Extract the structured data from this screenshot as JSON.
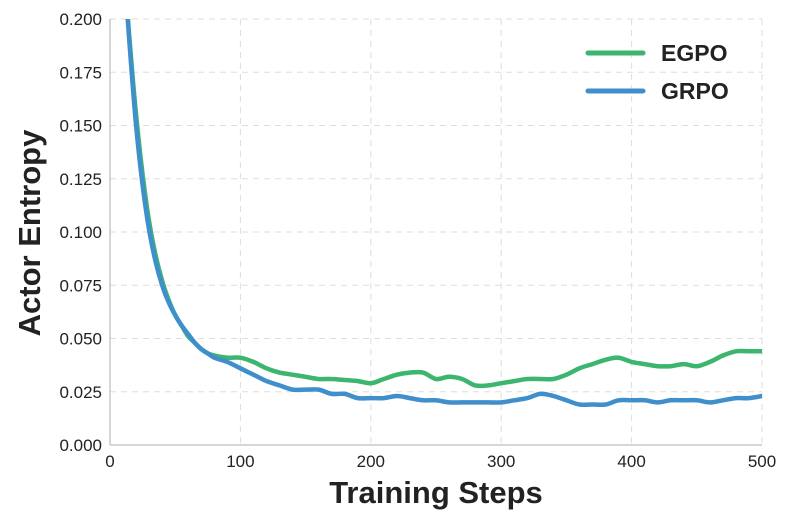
{
  "chart_data": {
    "type": "line",
    "title": "",
    "xlabel": "Training Steps",
    "ylabel": "Actor Entropy",
    "xlim": [
      0,
      500
    ],
    "ylim": [
      0,
      0.2
    ],
    "x_ticks": [
      0,
      100,
      200,
      300,
      400,
      500
    ],
    "x_tick_labels": [
      "0",
      "100",
      "200",
      "300",
      "400",
      "500"
    ],
    "y_ticks": [
      0,
      0.025,
      0.05,
      0.075,
      0.1,
      0.125,
      0.15,
      0.175,
      0.2
    ],
    "y_tick_labels": [
      "0.000",
      "0.025",
      "0.050",
      "0.075",
      "0.100",
      "0.125",
      "0.150",
      "0.175",
      "0.200"
    ],
    "grid": true,
    "legend_position": "top-right",
    "series": [
      {
        "name": "EGPO",
        "color": "#3cb56e",
        "x": [
          12,
          15,
          20,
          25,
          30,
          35,
          40,
          45,
          50,
          55,
          60,
          65,
          70,
          75,
          80,
          90,
          100,
          110,
          120,
          130,
          140,
          150,
          160,
          170,
          180,
          190,
          200,
          210,
          220,
          230,
          240,
          250,
          260,
          270,
          280,
          290,
          300,
          310,
          320,
          330,
          340,
          350,
          360,
          370,
          380,
          390,
          400,
          410,
          420,
          430,
          440,
          450,
          460,
          470,
          480,
          490,
          500
        ],
        "y": [
          0.215,
          0.19,
          0.155,
          0.127,
          0.105,
          0.089,
          0.077,
          0.068,
          0.061,
          0.056,
          0.051,
          0.048,
          0.045,
          0.043,
          0.042,
          0.041,
          0.041,
          0.039,
          0.036,
          0.034,
          0.033,
          0.032,
          0.031,
          0.031,
          0.0305,
          0.03,
          0.029,
          0.031,
          0.033,
          0.034,
          0.034,
          0.031,
          0.032,
          0.031,
          0.028,
          0.028,
          0.029,
          0.03,
          0.031,
          0.031,
          0.031,
          0.033,
          0.036,
          0.038,
          0.04,
          0.041,
          0.039,
          0.038,
          0.037,
          0.037,
          0.038,
          0.037,
          0.039,
          0.042,
          0.044,
          0.044,
          0.044
        ]
      },
      {
        "name": "GRPO",
        "color": "#3f8fcc",
        "x": [
          12,
          15,
          20,
          25,
          30,
          35,
          40,
          45,
          50,
          55,
          60,
          65,
          70,
          75,
          80,
          90,
          100,
          110,
          120,
          130,
          140,
          150,
          160,
          170,
          180,
          190,
          200,
          210,
          220,
          230,
          240,
          250,
          260,
          270,
          280,
          290,
          300,
          310,
          320,
          330,
          340,
          350,
          360,
          370,
          380,
          390,
          400,
          410,
          420,
          430,
          440,
          450,
          460,
          470,
          480,
          490,
          500
        ],
        "y": [
          0.215,
          0.188,
          0.15,
          0.122,
          0.101,
          0.086,
          0.075,
          0.067,
          0.061,
          0.056,
          0.052,
          0.048,
          0.045,
          0.043,
          0.041,
          0.039,
          0.036,
          0.033,
          0.03,
          0.028,
          0.026,
          0.026,
          0.026,
          0.024,
          0.024,
          0.022,
          0.022,
          0.022,
          0.023,
          0.022,
          0.021,
          0.021,
          0.02,
          0.02,
          0.02,
          0.02,
          0.02,
          0.021,
          0.022,
          0.024,
          0.023,
          0.021,
          0.019,
          0.019,
          0.019,
          0.021,
          0.021,
          0.021,
          0.02,
          0.021,
          0.021,
          0.021,
          0.02,
          0.021,
          0.022,
          0.022,
          0.023
        ]
      }
    ]
  }
}
